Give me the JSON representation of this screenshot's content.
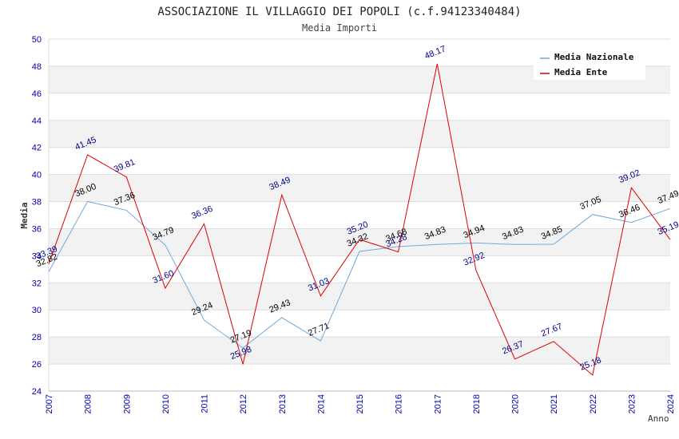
{
  "chart_data": {
    "type": "line",
    "title": "ASSOCIAZIONE IL VILLAGGIO DEI POPOLI (c.f.94123340484)",
    "subtitle": "Media Importi",
    "xlabel": "Anno",
    "ylabel": "Media",
    "ylim": [
      24,
      50
    ],
    "yticks": [
      "24",
      "26",
      "28",
      "30",
      "32",
      "34",
      "36",
      "38",
      "40",
      "42",
      "44",
      "46",
      "48",
      "50"
    ],
    "categories": [
      "2007",
      "2008",
      "2009",
      "2010",
      "2011",
      "2012",
      "2013",
      "2014",
      "2015",
      "2016",
      "2017",
      "2018",
      "2020",
      "2021",
      "2022",
      "2023",
      "2024"
    ],
    "grid": true,
    "legend_position": "top-right",
    "series": [
      {
        "name": "Media Nazionale",
        "color": "#6fa8dc",
        "label_color": "#000000",
        "values": [
          32.82,
          38.0,
          37.36,
          34.79,
          29.24,
          27.19,
          29.43,
          27.71,
          34.32,
          34.68,
          34.83,
          34.94,
          34.83,
          34.85,
          37.05,
          36.46,
          37.49
        ],
        "labels": [
          "32.82",
          "38.00",
          "37.36",
          "34.79",
          "29.24",
          "27.19",
          "29.43",
          "27.71",
          "34.32",
          "34.68",
          "34.83",
          "34.94",
          "34.83",
          "34.85",
          "37.05",
          "36.46",
          "37.49"
        ]
      },
      {
        "name": "Media Ente",
        "color": "#dd0000",
        "label_color": "#00008b",
        "values": [
          33.39,
          41.45,
          39.81,
          31.6,
          36.36,
          25.98,
          38.49,
          31.03,
          35.2,
          34.28,
          48.17,
          32.92,
          26.37,
          27.67,
          25.18,
          39.02,
          35.19
        ],
        "labels": [
          "33.39",
          "41.45",
          "39.81",
          "31.60",
          "36.36",
          "25.98",
          "38.49",
          "31.03",
          "35.20",
          "34.28",
          "48.17",
          "32.92",
          "26.37",
          "27.67",
          "25.18",
          "39.02",
          "35.19"
        ]
      }
    ],
    "colors": {
      "axis_tick": "#0000aa",
      "band": "#f2f2f2",
      "gridline": "#dddddd",
      "text": "#333333"
    }
  }
}
